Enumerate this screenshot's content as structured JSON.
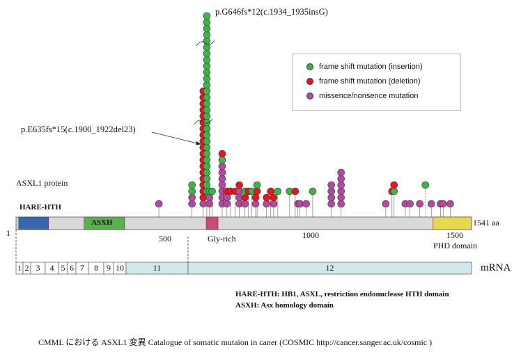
{
  "title_annotation_top": "p.G646fs*12(c.1934_1935insG)",
  "annotation_deletion": "p.E635fs*15(c.1900_1922del23)",
  "protein_label": "ASXL1 protein",
  "protein_length_label": "1541 aa",
  "start_label": "1",
  "axis_ticks": [
    {
      "aa": 500,
      "label": "500"
    },
    {
      "aa": 1000,
      "label": "1000"
    },
    {
      "aa": 1500,
      "label": "1500"
    }
  ],
  "domains": [
    {
      "name": "HARE-HTH",
      "start": 10,
      "end": 111,
      "color": "#3a66b0",
      "label": "HARE-HTH"
    },
    {
      "name": "ASXH",
      "start": 231,
      "end": 368,
      "color": "#5cb050",
      "label": "ASXH"
    },
    {
      "name": "Gly-rich",
      "start": 644,
      "end": 684,
      "color": "#c84a78",
      "label": "Gly-rich"
    },
    {
      "name": "PHD",
      "start": 1411,
      "end": 1541,
      "color": "#e6d850",
      "label": "PHD domain"
    }
  ],
  "mrna_label": "mRNA",
  "exons": [
    "1",
    "2",
    "3",
    "4",
    "5",
    "6",
    "7",
    "8",
    "9",
    "10",
    "11",
    "12"
  ],
  "legend": [
    {
      "type": "g",
      "label": "frame shift mutation  (insertion)",
      "color": "#3fb24a"
    },
    {
      "type": "r",
      "label": "frame shift mutation  (deletion)",
      "color": "#e8141e"
    },
    {
      "type": "m",
      "label": "missence/nonsence mutation",
      "color": "#b24aa2"
    }
  ],
  "mutations": [
    {
      "aa": 484,
      "level": 0,
      "types": "m"
    },
    {
      "aa": 596,
      "level": 0,
      "types": "mmgg"
    },
    {
      "aa": 634,
      "level": 0,
      "types": "mrrrrrrrrrrrrrrrrrr"
    },
    {
      "aa": 646,
      "level": 2,
      "types": "ggggggggggggggggggggggggggggg"
    },
    {
      "aa": 655,
      "level": 0,
      "types": "mmg"
    },
    {
      "aa": 664,
      "level": 2,
      "types": "g"
    },
    {
      "aa": 698,
      "level": 0,
      "types": "mmmmmmmgr"
    },
    {
      "aa": 714,
      "level": 0,
      "types": "mmr"
    },
    {
      "aa": 726,
      "level": 2,
      "types": "r"
    },
    {
      "aa": 742,
      "level": 2,
      "types": "r"
    },
    {
      "aa": 756,
      "level": 0,
      "types": "mmmr"
    },
    {
      "aa": 775,
      "level": 0,
      "types": "mrg"
    },
    {
      "aa": 787,
      "level": 2,
      "types": "r"
    },
    {
      "aa": 798,
      "level": 2,
      "types": "g"
    },
    {
      "aa": 811,
      "level": 0,
      "types": "mr"
    },
    {
      "aa": 816,
      "level": 2,
      "types": "rg"
    },
    {
      "aa": 848,
      "level": 0,
      "types": "mr"
    },
    {
      "aa": 862,
      "level": 2,
      "types": "r"
    },
    {
      "aa": 872,
      "level": 0,
      "types": "mr"
    },
    {
      "aa": 886,
      "level": 2,
      "types": "g"
    },
    {
      "aa": 926,
      "level": 2,
      "types": "g"
    },
    {
      "aa": 945,
      "level": 2,
      "types": "r"
    },
    {
      "aa": 954,
      "level": 0,
      "types": "m"
    },
    {
      "aa": 961,
      "level": 0,
      "types": "m"
    },
    {
      "aa": 982,
      "level": 0,
      "types": "m"
    },
    {
      "aa": 1004,
      "level": 2,
      "types": "g"
    },
    {
      "aa": 1067,
      "level": 0,
      "types": "mmmm"
    },
    {
      "aa": 1100,
      "level": 0,
      "types": "mmmmmm"
    },
    {
      "aa": 1251,
      "level": 0,
      "types": "m"
    },
    {
      "aa": 1272,
      "level": 2,
      "types": "r"
    },
    {
      "aa": 1279,
      "level": 2,
      "types": "gr"
    },
    {
      "aa": 1317,
      "level": 0,
      "types": "m"
    },
    {
      "aa": 1333,
      "level": 0,
      "types": "m"
    },
    {
      "aa": 1366,
      "level": 0,
      "types": "m"
    },
    {
      "aa": 1385,
      "level": 3,
      "types": "g"
    },
    {
      "aa": 1405,
      "level": 0,
      "types": "m"
    },
    {
      "aa": 1436,
      "level": 0,
      "types": "m"
    },
    {
      "aa": 1445,
      "level": 0,
      "types": "m"
    },
    {
      "aa": 1469,
      "level": 0,
      "types": "m"
    }
  ],
  "footnotes": {
    "hare_key": "HARE-HTH:",
    "hare_desc": "HB1, ASXL, restriction endonuclease HTH domain",
    "asxh_key": "ASXH:",
    "asxh_desc": "Asx homology domain"
  },
  "caption": "CMML における ASXL1 変異    Catalogue of somatic mutaion in caner (COSMIC http://cancer.sanger.ac.uk/cosmic )"
}
